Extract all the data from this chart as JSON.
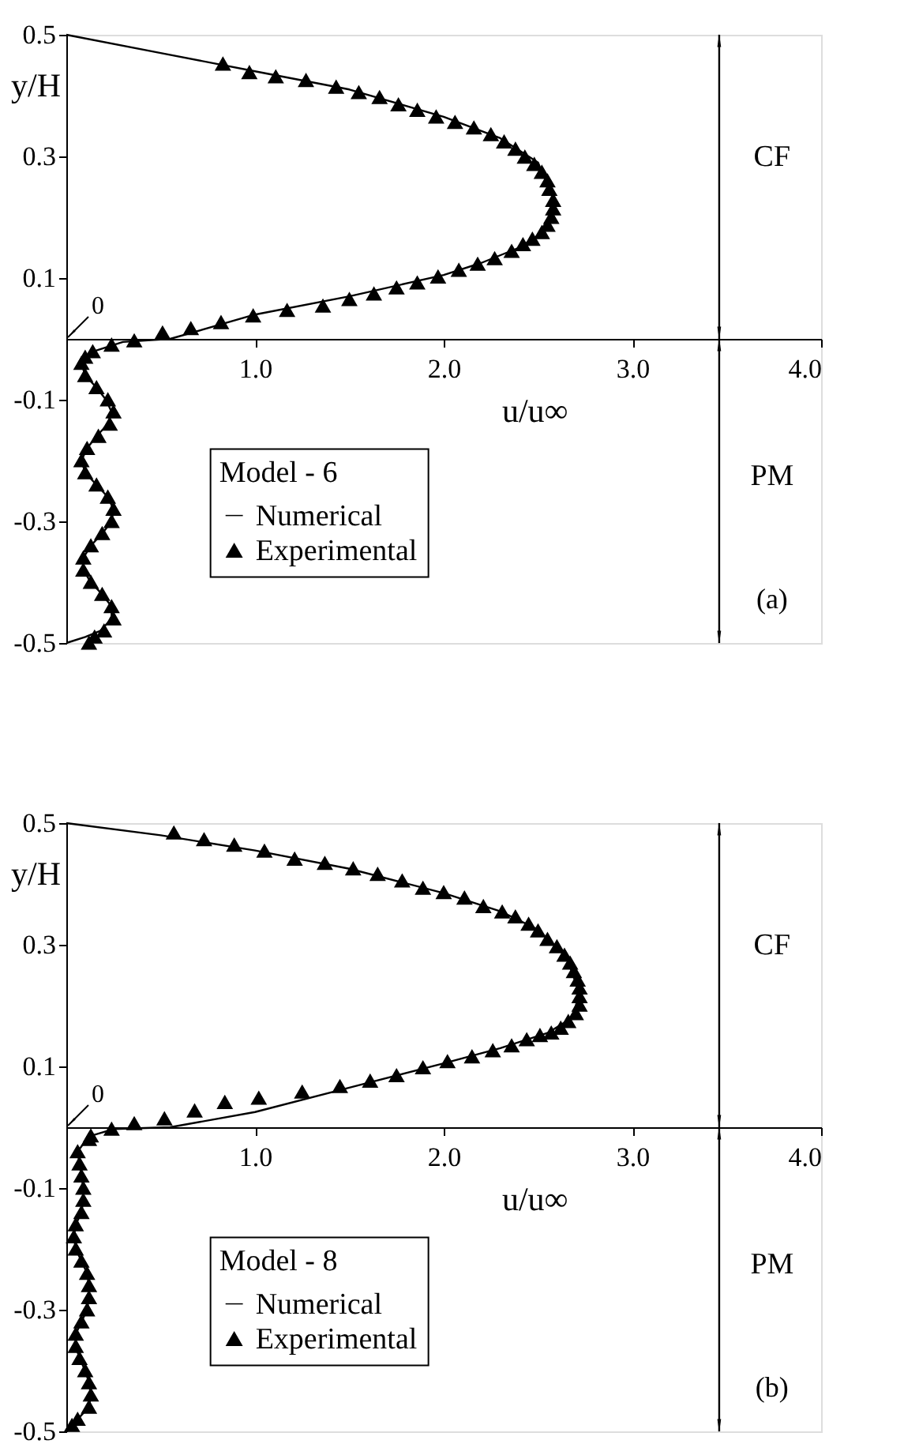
{
  "chart_data": [
    {
      "type": "line",
      "xlabel": "u/u∞",
      "ylabel": "y/H",
      "legend_title": "Model - 6",
      "legend": "bottom left",
      "grid": false,
      "xlim": [
        0,
        4
      ],
      "ylim": [
        -0.5,
        0.5
      ],
      "xticks": [
        {
          "value": 1,
          "label": "1.0"
        },
        {
          "value": 2,
          "label": "2.0"
        },
        {
          "value": 3,
          "label": "3.0"
        },
        {
          "value": 4,
          "label": "4.0"
        }
      ],
      "yticks": [
        0.5,
        0.3,
        0.1,
        -0.1,
        -0.3,
        -0.5
      ],
      "annotations": [
        "0",
        "CF",
        "PM",
        "(a)"
      ],
      "series": [
        {
          "name": "Numerical",
          "type": "line",
          "color": "#000000",
          "marker": "none",
          "x": [
            0,
            0.5,
            1.0,
            1.5,
            2.0,
            2.3,
            2.5,
            2.58,
            2.55,
            2.4,
            2.2,
            2.0,
            1.5,
            1.0,
            0.55,
            0.3,
            0.15,
            0.1,
            0.08,
            0.1,
            0.16,
            0.21,
            0.24,
            0.22,
            0.16,
            0.11,
            0.08,
            0.1,
            0.16,
            0.22,
            0.25,
            0.24,
            0.19,
            0.13,
            0.09,
            0.09,
            0.13,
            0.19,
            0.24,
            0.24,
            0.18,
            0.1,
            0
          ],
          "values": [
            0.5,
            0.47,
            0.44,
            0.41,
            0.365,
            0.33,
            0.29,
            0.23,
            0.18,
            0.15,
            0.125,
            0.105,
            0.07,
            0.04,
            0.0,
            -0.005,
            -0.02,
            -0.03,
            -0.04,
            -0.06,
            -0.08,
            -0.1,
            -0.12,
            -0.14,
            -0.16,
            -0.18,
            -0.2,
            -0.22,
            -0.24,
            -0.26,
            -0.28,
            -0.3,
            -0.32,
            -0.34,
            -0.36,
            -0.38,
            -0.4,
            -0.42,
            -0.44,
            -0.46,
            -0.48,
            -0.49,
            -0.5
          ]
        },
        {
          "name": "Experimental",
          "type": "scatter",
          "color": "#000000",
          "marker": "triangle",
          "x": [
            0.83,
            0.97,
            1.11,
            1.27,
            1.43,
            1.55,
            1.66,
            1.76,
            1.86,
            1.96,
            2.06,
            2.16,
            2.25,
            2.32,
            2.38,
            2.43,
            2.48,
            2.52,
            2.55,
            2.56,
            2.58,
            2.58,
            2.57,
            2.55,
            2.52,
            2.47,
            2.42,
            2.36,
            2.27,
            2.18,
            2.08,
            1.97,
            1.86,
            1.75,
            1.63,
            1.5,
            1.36,
            1.17,
            0.99,
            0.82,
            0.66,
            0.51,
            0.36,
            0.24,
            0.14,
            0.1,
            0.08,
            0.1,
            0.16,
            0.22,
            0.25,
            0.23,
            0.17,
            0.11,
            0.08,
            0.1,
            0.16,
            0.22,
            0.25,
            0.24,
            0.19,
            0.13,
            0.09,
            0.09,
            0.13,
            0.19,
            0.24,
            0.25,
            0.2,
            0.15,
            0.12
          ],
          "values": [
            0.452,
            0.438,
            0.431,
            0.425,
            0.414,
            0.405,
            0.397,
            0.385,
            0.376,
            0.365,
            0.356,
            0.347,
            0.336,
            0.324,
            0.312,
            0.299,
            0.287,
            0.274,
            0.26,
            0.246,
            0.228,
            0.214,
            0.2,
            0.187,
            0.175,
            0.164,
            0.155,
            0.144,
            0.132,
            0.123,
            0.113,
            0.102,
            0.092,
            0.084,
            0.074,
            0.065,
            0.054,
            0.047,
            0.038,
            0.027,
            0.017,
            0.01,
            -0.003,
            -0.01,
            -0.021,
            -0.03,
            -0.04,
            -0.06,
            -0.08,
            -0.1,
            -0.12,
            -0.14,
            -0.16,
            -0.18,
            -0.2,
            -0.22,
            -0.24,
            -0.26,
            -0.28,
            -0.3,
            -0.32,
            -0.34,
            -0.36,
            -0.38,
            -0.4,
            -0.42,
            -0.44,
            -0.46,
            -0.48,
            -0.49,
            -0.5
          ]
        }
      ]
    },
    {
      "type": "line",
      "xlabel": "u/u∞",
      "ylabel": "y/H",
      "legend_title": "Model - 8",
      "legend": "bottom left",
      "grid": false,
      "xlim": [
        0,
        4
      ],
      "ylim": [
        -0.5,
        0.5
      ],
      "xticks": [
        {
          "value": 1,
          "label": "1.0"
        },
        {
          "value": 2,
          "label": "2.0"
        },
        {
          "value": 3,
          "label": "3.0"
        },
        {
          "value": 4,
          "label": "4.0"
        }
      ],
      "yticks": [
        0.5,
        0.3,
        0.1,
        -0.1,
        -0.3,
        -0.5
      ],
      "annotations": [
        "0",
        "CF",
        "PM",
        "(b)"
      ],
      "series": [
        {
          "name": "Numerical",
          "type": "line",
          "color": "#000000",
          "marker": "none",
          "x": [
            0,
            0.5,
            1.0,
            1.5,
            2.0,
            2.3,
            2.5,
            2.65,
            2.72,
            2.68,
            2.55,
            2.3,
            2.0,
            1.5,
            1.0,
            0.55,
            0.25,
            0.12,
            0.06,
            0.07,
            0.08,
            0.09,
            0.09,
            0.08,
            0.05,
            0.04,
            0.05,
            0.08,
            0.11,
            0.12,
            0.12,
            0.11,
            0.08,
            0.05,
            0.05,
            0.07,
            0.1,
            0.12,
            0.13,
            0.12,
            0.06,
            0
          ],
          "values": [
            0.5,
            0.48,
            0.455,
            0.425,
            0.385,
            0.355,
            0.325,
            0.28,
            0.22,
            0.18,
            0.155,
            0.13,
            0.105,
            0.065,
            0.025,
            0.0,
            -0.003,
            -0.015,
            -0.04,
            -0.06,
            -0.08,
            -0.1,
            -0.12,
            -0.14,
            -0.16,
            -0.18,
            -0.2,
            -0.22,
            -0.24,
            -0.26,
            -0.28,
            -0.3,
            -0.32,
            -0.34,
            -0.36,
            -0.38,
            -0.4,
            -0.42,
            -0.44,
            -0.46,
            -0.48,
            -0.5
          ]
        },
        {
          "name": "Experimental",
          "type": "scatter",
          "color": "#000000",
          "marker": "triangle",
          "x": [
            0.57,
            0.73,
            0.89,
            1.05,
            1.21,
            1.37,
            1.52,
            1.65,
            1.78,
            1.89,
            2.0,
            2.11,
            2.21,
            2.31,
            2.38,
            2.45,
            2.5,
            2.55,
            2.6,
            2.64,
            2.67,
            2.69,
            2.71,
            2.72,
            2.72,
            2.72,
            2.7,
            2.66,
            2.62,
            2.57,
            2.51,
            2.44,
            2.36,
            2.26,
            2.15,
            2.02,
            1.89,
            1.75,
            1.61,
            1.45,
            1.25,
            1.02,
            0.84,
            0.68,
            0.52,
            0.36,
            0.24,
            0.13,
            0.12,
            0.06,
            0.07,
            0.08,
            0.09,
            0.09,
            0.08,
            0.05,
            0.04,
            0.05,
            0.08,
            0.11,
            0.12,
            0.12,
            0.11,
            0.08,
            0.05,
            0.05,
            0.07,
            0.1,
            0.12,
            0.13,
            0.12,
            0.06,
            0.03
          ],
          "values": [
            0.484,
            0.473,
            0.464,
            0.454,
            0.441,
            0.434,
            0.425,
            0.416,
            0.405,
            0.393,
            0.386,
            0.377,
            0.363,
            0.354,
            0.346,
            0.334,
            0.323,
            0.309,
            0.297,
            0.283,
            0.27,
            0.256,
            0.242,
            0.229,
            0.215,
            0.201,
            0.187,
            0.174,
            0.163,
            0.155,
            0.151,
            0.144,
            0.134,
            0.126,
            0.116,
            0.108,
            0.098,
            0.085,
            0.076,
            0.067,
            0.058,
            0.048,
            0.041,
            0.027,
            0.014,
            0.006,
            -0.003,
            -0.014,
            -0.02,
            -0.04,
            -0.06,
            -0.08,
            -0.1,
            -0.12,
            -0.14,
            -0.16,
            -0.18,
            -0.2,
            -0.22,
            -0.24,
            -0.26,
            -0.28,
            -0.3,
            -0.32,
            -0.34,
            -0.36,
            -0.38,
            -0.4,
            -0.42,
            -0.44,
            -0.46,
            -0.48,
            -0.49
          ]
        }
      ]
    }
  ]
}
